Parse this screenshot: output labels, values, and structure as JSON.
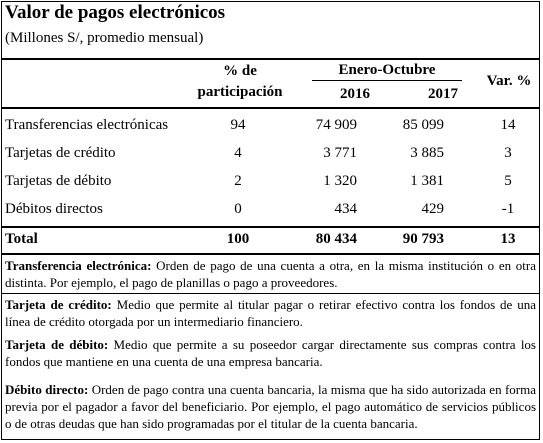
{
  "title": "Valor de pagos electrónicos",
  "subtitle": "(Millones S/, promedio mensual)",
  "header": {
    "share_line1": "% de",
    "share_line2": "participación",
    "period": "Enero-Octubre",
    "year1": "2016",
    "year2": "2017",
    "var": "Var. %"
  },
  "rows": [
    {
      "label": "Transferencias electrónicas",
      "share": "94",
      "y2016": "74 909",
      "y2017": "85 099",
      "var": "14"
    },
    {
      "label": "Tarjetas de crédito",
      "share": "4",
      "y2016": "3 771",
      "y2017": "3 885",
      "var": "3"
    },
    {
      "label": "Tarjetas de débito",
      "share": "2",
      "y2016": "1 320",
      "y2017": "1 381",
      "var": "5"
    },
    {
      "label": "Débitos directos",
      "share": "0",
      "y2016": "434",
      "y2017": "429",
      "var": "-1"
    }
  ],
  "total": {
    "label": "Total",
    "share": "100",
    "y2016": "80 434",
    "y2017": "90 793",
    "var": "13"
  },
  "notes": [
    {
      "term": "Transferencia electrónica:",
      "text": " Orden de pago de una cuenta a otra, en la misma institución o en otra distinta. Por ejemplo, el pago de planillas o pago a proveedores."
    },
    {
      "term": "Tarjeta de crédito:",
      "text": " Medio que permite al titular pagar o retirar efectivo contra los fondos de una línea de crédito otorgada por un intermediario financiero."
    },
    {
      "term": "Tarjeta de débito:",
      "text": " Medio que permite a su poseedor cargar directamente sus compras contra los fondos que mantiene en una cuenta de una empresa bancaria."
    },
    {
      "term": "Débito directo:",
      "text": " Orden de pago contra una cuenta bancaria, la misma que ha sido autorizada en forma previa por el pagador a favor del beneficiario. Por ejemplo, el pago automático de servicios públicos o de otras deudas que han sido programadas por el titular de la cuenta bancaria."
    }
  ]
}
